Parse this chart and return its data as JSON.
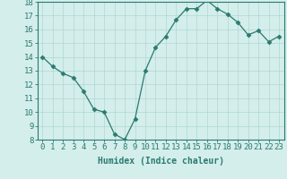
{
  "x": [
    0,
    1,
    2,
    3,
    4,
    5,
    6,
    7,
    8,
    9,
    10,
    11,
    12,
    13,
    14,
    15,
    16,
    17,
    18,
    19,
    20,
    21,
    22,
    23
  ],
  "y": [
    14.0,
    13.3,
    12.8,
    12.5,
    11.5,
    10.2,
    10.0,
    8.4,
    8.0,
    9.5,
    13.0,
    14.7,
    15.5,
    16.7,
    17.5,
    17.5,
    18.1,
    17.5,
    17.1,
    16.5,
    15.6,
    15.9,
    15.1,
    15.5
  ],
  "line_color": "#2a7a70",
  "marker": "D",
  "marker_size": 2.5,
  "bg_color": "#d4eeeb",
  "grid_color": "#afd8d4",
  "xlabel": "Humidex (Indice chaleur)",
  "ylabel": "",
  "ylim": [
    8,
    18
  ],
  "xlim": [
    -0.5,
    23.5
  ],
  "yticks": [
    8,
    9,
    10,
    11,
    12,
    13,
    14,
    15,
    16,
    17,
    18
  ],
  "xticks": [
    0,
    1,
    2,
    3,
    4,
    5,
    6,
    7,
    8,
    9,
    10,
    11,
    12,
    13,
    14,
    15,
    16,
    17,
    18,
    19,
    20,
    21,
    22,
    23
  ],
  "axis_fontsize": 7,
  "tick_fontsize": 6.5
}
